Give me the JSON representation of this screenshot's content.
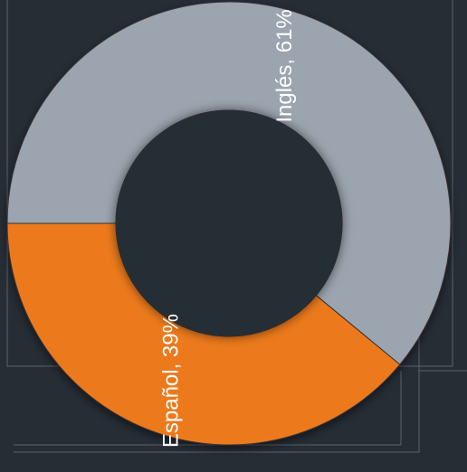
{
  "chart_data": {
    "type": "pie",
    "donut": true,
    "values": [
      61,
      39
    ],
    "value_labels": [
      "Inglés, 61%",
      "Español, 39%"
    ],
    "colors": [
      "#9ba4af",
      "#ec7a1c"
    ]
  }
}
